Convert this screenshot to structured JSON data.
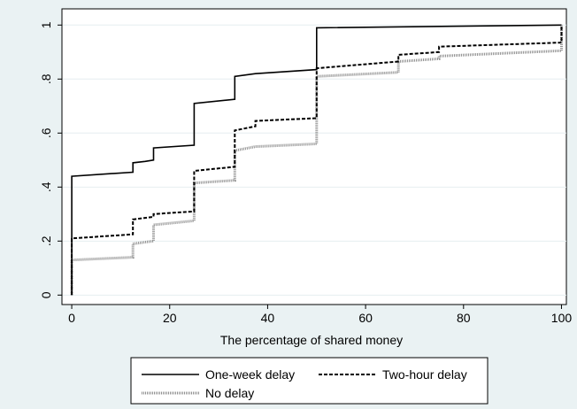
{
  "chart_data": {
    "type": "line",
    "title": "",
    "xlabel": "The percentage of shared money",
    "ylabel": "",
    "xlim": [
      -2,
      101
    ],
    "ylim": [
      -0.035,
      1.06
    ],
    "x_ticks": [
      0,
      20,
      40,
      60,
      80,
      100
    ],
    "x_tick_labels": [
      "0",
      "20",
      "40",
      "60",
      "80",
      "100"
    ],
    "y_ticks": [
      0,
      0.2,
      0.4,
      0.6,
      0.8,
      1
    ],
    "y_tick_labels": [
      "0",
      ".2",
      ".4",
      ".6",
      ".8",
      "1"
    ],
    "grid": true,
    "legend_position": "bottom",
    "series": [
      {
        "name": "One-week delay",
        "style": "solid",
        "color": "#000000",
        "points": [
          [
            0,
            0.0
          ],
          [
            0,
            0.44
          ],
          [
            12.5,
            0.455
          ],
          [
            12.5,
            0.49
          ],
          [
            15,
            0.495
          ],
          [
            16.7,
            0.5
          ],
          [
            16.7,
            0.545
          ],
          [
            25,
            0.555
          ],
          [
            25,
            0.71
          ],
          [
            33.3,
            0.725
          ],
          [
            33.3,
            0.81
          ],
          [
            37.5,
            0.82
          ],
          [
            50,
            0.835
          ],
          [
            50,
            0.99
          ],
          [
            100,
            1.0
          ]
        ]
      },
      {
        "name": "Two-hour delay",
        "style": "dashed",
        "color": "#000000",
        "points": [
          [
            0,
            0.0
          ],
          [
            0,
            0.21
          ],
          [
            12.5,
            0.225
          ],
          [
            12.5,
            0.28
          ],
          [
            16.7,
            0.29
          ],
          [
            16.7,
            0.3
          ],
          [
            25,
            0.31
          ],
          [
            25,
            0.46
          ],
          [
            33.3,
            0.475
          ],
          [
            33.3,
            0.61
          ],
          [
            37.5,
            0.625
          ],
          [
            37.5,
            0.645
          ],
          [
            50,
            0.655
          ],
          [
            50,
            0.84
          ],
          [
            66.7,
            0.865
          ],
          [
            66.7,
            0.89
          ],
          [
            75,
            0.9
          ],
          [
            75,
            0.92
          ],
          [
            100,
            0.935
          ],
          [
            100,
            1.0
          ]
        ]
      },
      {
        "name": "No delay",
        "style": "dotted",
        "color": "#8c8c8c",
        "points": [
          [
            0,
            0.0
          ],
          [
            0,
            0.13
          ],
          [
            12.5,
            0.14
          ],
          [
            12.5,
            0.19
          ],
          [
            16.7,
            0.2
          ],
          [
            16.7,
            0.26
          ],
          [
            25,
            0.275
          ],
          [
            25,
            0.415
          ],
          [
            33.3,
            0.425
          ],
          [
            33.3,
            0.535
          ],
          [
            37.5,
            0.55
          ],
          [
            50,
            0.56
          ],
          [
            50,
            0.81
          ],
          [
            66.7,
            0.825
          ],
          [
            66.7,
            0.865
          ],
          [
            75,
            0.875
          ],
          [
            75,
            0.885
          ],
          [
            100,
            0.905
          ],
          [
            100,
            1.0
          ]
        ]
      }
    ]
  }
}
